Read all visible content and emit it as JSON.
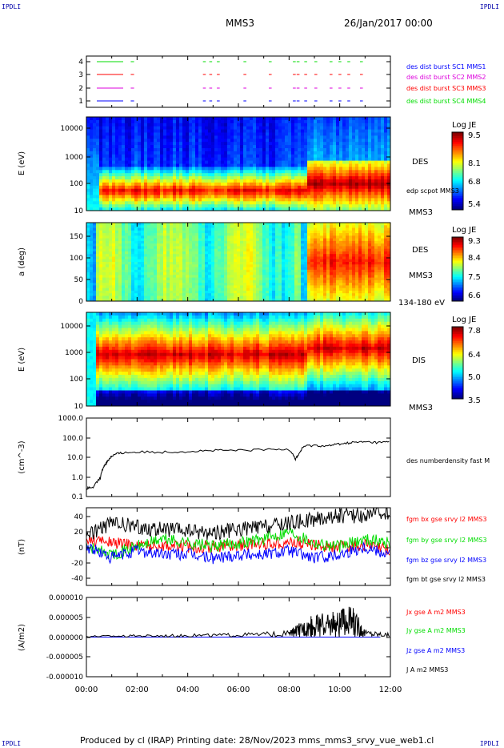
{
  "header": {
    "corner_tl": "IPDLI",
    "corner_tr": "IPDLI",
    "corner_bl": "IPDLI",
    "corner_br": "IPDLI",
    "spacecraft": "MMS3",
    "date": "26/Jan/2017 00:00"
  },
  "footer": {
    "text": "Produced by cl (IRAP)   Printing date: 28/Nov/2023   mms_mms3_srvy_vue_web1.cl"
  },
  "colors": {
    "black": "#000000",
    "red": "#ff0000",
    "green": "#00dd00",
    "blue": "#0000ff",
    "magenta": "#dd00dd"
  },
  "chart_data": [
    {
      "type": "scatter",
      "panel": "burst",
      "ylim": [
        0.5,
        4.5
      ],
      "y_ticks": [
        "1",
        "2",
        "3",
        "4"
      ],
      "series": [
        {
          "name": "des dist burst SC1 MMS1",
          "color": "#0000ff",
          "y": 1
        },
        {
          "name": "des dist burst SC2 MMS2",
          "color": "#dd00dd",
          "y": 2
        },
        {
          "name": "des dist burst SC3 MMS3",
          "color": "#ff0000",
          "y": 3
        },
        {
          "name": "des dist burst SC4 MMS4",
          "color": "#00dd00",
          "y": 4
        }
      ],
      "burst_intervals_hours": [
        [
          0.5,
          1.1
        ],
        [
          1.75,
          1.8
        ],
        [
          4.6,
          4.65
        ],
        [
          4.85,
          4.9
        ],
        [
          5.15,
          5.2
        ],
        [
          6.2,
          6.25
        ],
        [
          7.2,
          7.25
        ],
        [
          8.15,
          8.2
        ],
        [
          8.3,
          8.35
        ],
        [
          8.6,
          8.65
        ],
        [
          9.0,
          9.05
        ],
        [
          9.6,
          9.65
        ],
        [
          9.95,
          10.0
        ],
        [
          10.3,
          10.35
        ],
        [
          10.8,
          10.85
        ]
      ]
    },
    {
      "type": "heatmap",
      "panel": "des_energy",
      "ylabel": "E (eV)",
      "y_ticks": [
        "10",
        "100",
        "1000",
        "10000"
      ],
      "yscale": "log",
      "ylim": [
        10,
        30000
      ],
      "label": "DES",
      "sublabel": "MMS3",
      "overlay": "edp scpot MMS3",
      "colorbar": {
        "title": "Log JE",
        "ticks": [
          "9.5",
          "8.1",
          "6.8",
          "5.4"
        ],
        "range": [
          5.4,
          9.5
        ]
      }
    },
    {
      "type": "heatmap",
      "panel": "des_pitch",
      "ylabel": "a (deg)",
      "y_ticks": [
        "0",
        "50",
        "100",
        "150"
      ],
      "ylim": [
        0,
        180
      ],
      "label": "DES",
      "sublabel": "MMS3",
      "energy_range": "134-180 eV",
      "colorbar": {
        "title": "Log JE",
        "ticks": [
          "9.3",
          "8.4",
          "7.5",
          "6.6"
        ],
        "range": [
          6.6,
          9.3
        ]
      }
    },
    {
      "type": "heatmap",
      "panel": "dis_energy",
      "ylabel": "E (eV)",
      "y_ticks": [
        "10",
        "100",
        "1000",
        "10000"
      ],
      "yscale": "log",
      "ylim": [
        10,
        30000
      ],
      "label": "DIS",
      "sublabel": "MMS3",
      "colorbar": {
        "title": "Log JE",
        "ticks": [
          "7.8",
          "6.4",
          "5.0",
          "3.5"
        ],
        "range": [
          3.5,
          7.8
        ]
      }
    },
    {
      "type": "line",
      "panel": "density",
      "ylabel": "(cm^-3)",
      "yscale": "log",
      "ylim": [
        0.3,
        1000
      ],
      "y_ticks": [
        "1000.0",
        "100.0",
        "10.0",
        "1.0",
        "0.1"
      ],
      "series": [
        {
          "name": "des numberdensity fast M",
          "color": "#000000",
          "x": [
            0.0,
            0.3,
            0.55,
            0.7,
            0.85,
            1.0,
            1.2,
            1.5,
            2.0,
            3.0,
            4.0,
            5.0,
            6.0,
            7.0,
            8.0,
            8.25,
            8.4,
            8.6,
            9.0,
            9.5,
            10.0,
            10.5,
            11.0,
            11.5,
            12.0
          ],
          "y": [
            0.7,
            0.8,
            2.0,
            7.0,
            12.0,
            20.0,
            25.0,
            28.0,
            30.0,
            30.0,
            32.0,
            35.0,
            35.0,
            38.0,
            40.0,
            14.0,
            25.0,
            55.0,
            60.0,
            55.0,
            70.0,
            80.0,
            85.0,
            80.0,
            85.0
          ]
        }
      ]
    },
    {
      "type": "line",
      "panel": "fgm",
      "ylabel": "(nT)",
      "ylim": [
        -50,
        50
      ],
      "y_ticks": [
        "40",
        "20",
        "0",
        "-20",
        "-40"
      ],
      "series": [
        {
          "name": "fgm bx gse srvy l2 MMS3",
          "color": "#ff0000",
          "x": [
            0,
            1,
            2,
            3,
            4,
            5,
            6,
            7,
            8,
            9,
            10,
            11,
            12
          ],
          "y": [
            10,
            5,
            2,
            2,
            0,
            0,
            2,
            4,
            6,
            2,
            0,
            2,
            -5
          ]
        },
        {
          "name": "fgm by gse srvy l2 MMS3",
          "color": "#00dd00",
          "x": [
            0,
            1,
            2,
            3,
            4,
            5,
            6,
            7,
            8,
            9,
            10,
            11,
            12
          ],
          "y": [
            0,
            -10,
            0,
            10,
            5,
            0,
            5,
            10,
            20,
            5,
            0,
            10,
            5
          ]
        },
        {
          "name": "fgm bz gse srvy l2 MMS3",
          "color": "#0000ff",
          "x": [
            0,
            1,
            2,
            3,
            4,
            5,
            6,
            7,
            8,
            9,
            10,
            11,
            12
          ],
          "y": [
            0,
            -15,
            -5,
            -10,
            -10,
            -15,
            -10,
            -10,
            -5,
            -15,
            -10,
            0,
            -10
          ]
        },
        {
          "name": "fgm bt gse srvy l2 MMS3",
          "color": "#000000",
          "x": [
            0,
            1,
            2,
            3,
            4,
            5,
            6,
            7,
            8,
            9,
            10,
            11,
            12
          ],
          "y": [
            15,
            30,
            25,
            22,
            20,
            18,
            22,
            25,
            30,
            35,
            40,
            40,
            45
          ]
        }
      ]
    },
    {
      "type": "line",
      "panel": "current",
      "ylabel": "(A/m2)",
      "ylim": [
        -1e-05,
        1e-05
      ],
      "y_ticks": [
        "0.000010",
        "0.000005",
        "0.000000",
        "-0.000005",
        "-0.000010"
      ],
      "series": [
        {
          "name": "Jx gse A m2 MMS3",
          "color": "#ff0000",
          "x": [
            0,
            12
          ],
          "y": [
            0,
            0
          ]
        },
        {
          "name": "Jy gse A m2 MMS3",
          "color": "#00dd00",
          "x": [
            0,
            12
          ],
          "y": [
            0,
            0
          ]
        },
        {
          "name": "Jz gse A m2 MMS3",
          "color": "#0000ff",
          "x": [
            0,
            12
          ],
          "y": [
            0,
            0
          ]
        },
        {
          "name": "J A m2 MMS3",
          "color": "#000000",
          "x": [
            0,
            2,
            4,
            6,
            8,
            8.5,
            9,
            9.5,
            10,
            10.5,
            11,
            12
          ],
          "y": [
            2e-07,
            3e-07,
            4e-07,
            5e-07,
            8e-07,
            2e-06,
            3e-06,
            3e-06,
            3.5e-06,
            4e-06,
            1e-06,
            5e-07
          ]
        }
      ]
    }
  ],
  "x_axis": {
    "ticks": [
      "00:00",
      "02:00",
      "04:00",
      "06:00",
      "08:00",
      "10:00",
      "12:00"
    ],
    "range_hours": [
      0,
      12
    ]
  }
}
